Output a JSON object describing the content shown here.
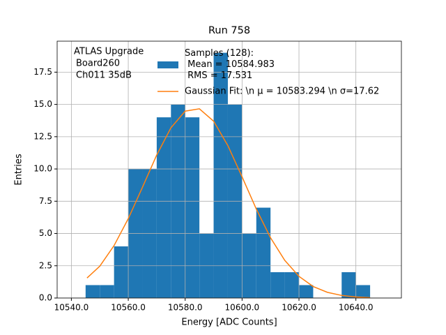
{
  "chart_data": {
    "type": "histogram",
    "title": "Run 758",
    "xlabel": "Energy [ADC Counts]",
    "ylabel": "Entries",
    "annotation": [
      "ATLAS Upgrade",
      "Board260",
      "Ch011 35dB"
    ],
    "bins": [
      10545,
      10550,
      10555,
      10560,
      10565,
      10570,
      10575,
      10580,
      10585,
      10590,
      10595,
      10600,
      10605,
      10610,
      10615,
      10620,
      10625,
      10630,
      10635,
      10640,
      10645
    ],
    "series": [
      {
        "name": "Samples (128):\n Mean = 10584.983\n RMS = 17.531",
        "color": "#1f77b4",
        "values": [
          1,
          1,
          4,
          10,
          10,
          14,
          15,
          14,
          5,
          19,
          15,
          5,
          7,
          2,
          2,
          1,
          0,
          0,
          2,
          1
        ]
      },
      {
        "name": "Gaussian Fit: \\n μ = 10583.294 \\n σ=17.62",
        "color": "#ff7f0e",
        "type": "line",
        "x": [
          10545.5,
          10550,
          10555,
          10560,
          10565,
          10570,
          10575,
          10580,
          10585,
          10590,
          10595,
          10600,
          10605,
          10610,
          10615,
          10620,
          10625,
          10630,
          10635,
          10640,
          10645
        ],
        "values": [
          1.55,
          2.47,
          4.06,
          6.15,
          8.59,
          11.08,
          13.19,
          14.48,
          14.66,
          13.7,
          11.81,
          9.39,
          6.89,
          4.67,
          2.92,
          1.68,
          0.89,
          0.44,
          0.2,
          0.08,
          0.03
        ]
      }
    ],
    "xlim": [
      10535,
      10656
    ],
    "ylim": [
      0,
      19.9
    ],
    "xticks": [
      {
        "value": 10540,
        "label": "10540.0"
      },
      {
        "value": 10560,
        "label": "10560.0"
      },
      {
        "value": 10580,
        "label": "10580.0"
      },
      {
        "value": 10600,
        "label": "10600.0"
      },
      {
        "value": 10620,
        "label": "10620.0"
      },
      {
        "value": 10640,
        "label": "10640.0"
      }
    ],
    "yticks": [
      {
        "value": 0,
        "label": "0.0"
      },
      2.5,
      {
        "value": 5,
        "label": "5.0"
      },
      7.5,
      {
        "value": 10,
        "label": "10.0"
      },
      12.5,
      {
        "value": 15,
        "label": "15.0"
      },
      17.5
    ],
    "grid": true
  }
}
